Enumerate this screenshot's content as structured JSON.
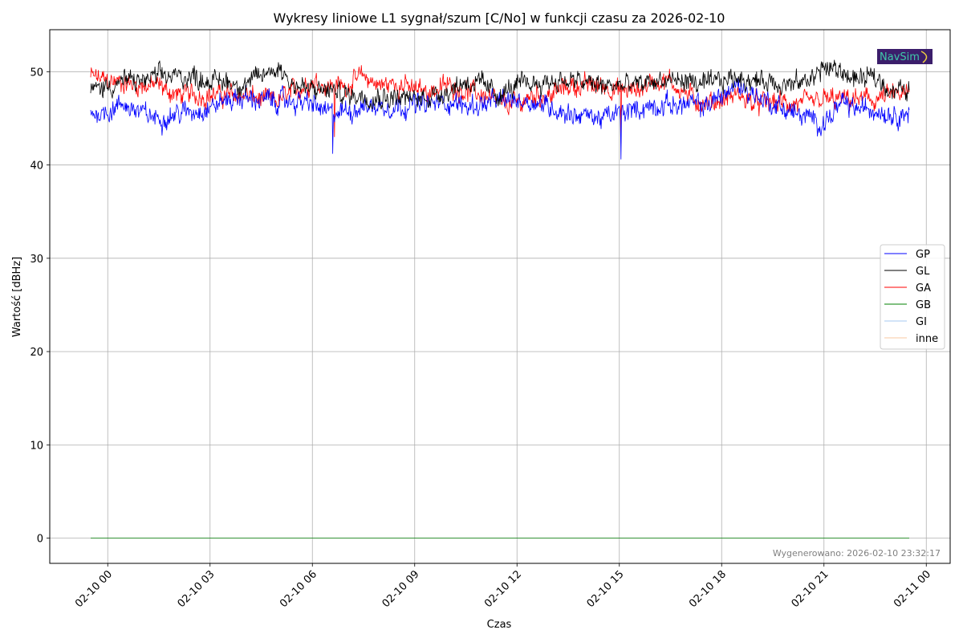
{
  "chart_data": {
    "type": "line",
    "title": "Wykresy liniowe L1 sygnał/szum [C/No] w funkcji czasu za 2026-02-10",
    "xlabel": "Czas",
    "ylabel": "Wartość [dBHz]",
    "x_start_hour": -0.5,
    "x_end_hour": 23.5,
    "xlim_hours": [
      -1.7,
      24.7
    ],
    "ylim": [
      -2.7,
      54.5
    ],
    "x_ticks": [
      {
        "hour": 0,
        "label": "02-10 00"
      },
      {
        "hour": 3,
        "label": "02-10 03"
      },
      {
        "hour": 6,
        "label": "02-10 06"
      },
      {
        "hour": 9,
        "label": "02-10 09"
      },
      {
        "hour": 12,
        "label": "02-10 12"
      },
      {
        "hour": 15,
        "label": "02-10 15"
      },
      {
        "hour": 18,
        "label": "02-10 18"
      },
      {
        "hour": 21,
        "label": "02-10 21"
      },
      {
        "hour": 24,
        "label": "02-11 00"
      }
    ],
    "y_ticks": [
      0,
      10,
      20,
      30,
      40,
      50
    ],
    "grid": true,
    "legend_position": "center-right",
    "series": [
      {
        "name": "GP",
        "color": "#0000ff",
        "points": [
          [
            -0.5,
            45.5
          ],
          [
            0,
            45.8
          ],
          [
            0.5,
            46.5
          ],
          [
            1,
            45.5
          ],
          [
            1.5,
            45
          ],
          [
            2,
            45.5
          ],
          [
            2.5,
            45.8
          ],
          [
            3,
            46.2
          ],
          [
            3.5,
            47
          ],
          [
            4,
            47.2
          ],
          [
            4.5,
            47
          ],
          [
            5,
            46.8
          ],
          [
            5.5,
            46.8
          ],
          [
            6,
            46.5
          ],
          [
            6.5,
            45.5
          ],
          [
            7,
            45.8
          ],
          [
            7.5,
            46.3
          ],
          [
            8,
            46.3
          ],
          [
            8.5,
            46.3
          ],
          [
            9,
            46.5
          ],
          [
            9.5,
            46.5
          ],
          [
            10,
            46.8
          ],
          [
            10.5,
            46.3
          ],
          [
            11,
            46.5
          ],
          [
            11.5,
            46.8
          ],
          [
            12,
            47
          ],
          [
            12.5,
            46.8
          ],
          [
            13,
            46.2
          ],
          [
            13.5,
            45.5
          ],
          [
            14,
            45.3
          ],
          [
            14.5,
            45
          ],
          [
            15,
            45.5
          ],
          [
            15.5,
            46
          ],
          [
            16,
            46.3
          ],
          [
            16.5,
            46.5
          ],
          [
            17,
            46.5
          ],
          [
            17.5,
            46.3
          ],
          [
            18,
            47.5
          ],
          [
            18.5,
            48.5
          ],
          [
            19,
            47.5
          ],
          [
            19.5,
            46.5
          ],
          [
            20,
            45.8
          ],
          [
            20.5,
            45
          ],
          [
            21,
            44.5
          ],
          [
            21.5,
            46.5
          ],
          [
            22,
            46
          ],
          [
            22.5,
            46
          ],
          [
            23,
            45.5
          ],
          [
            23.5,
            45.5
          ]
        ],
        "dips": [
          [
            6.6,
            41.2
          ],
          [
            15.05,
            40.6
          ]
        ]
      },
      {
        "name": "GL",
        "color": "#000000",
        "points": [
          [
            -0.5,
            48
          ],
          [
            0,
            48.5
          ],
          [
            0.5,
            49
          ],
          [
            1,
            49
          ],
          [
            1.5,
            49.5
          ],
          [
            2,
            49.5
          ],
          [
            2.5,
            49.5
          ],
          [
            3,
            49
          ],
          [
            3.5,
            49
          ],
          [
            4,
            48.5
          ],
          [
            4.5,
            49.5
          ],
          [
            5,
            50.5
          ],
          [
            5.5,
            48.5
          ],
          [
            6,
            48
          ],
          [
            6.5,
            48
          ],
          [
            7,
            47.5
          ],
          [
            7.5,
            47.5
          ],
          [
            8,
            47.3
          ],
          [
            8.5,
            47.3
          ],
          [
            9,
            47
          ],
          [
            9.5,
            47.5
          ],
          [
            10,
            48
          ],
          [
            10.5,
            49
          ],
          [
            11,
            48.5
          ],
          [
            11.5,
            47.5
          ],
          [
            12,
            48.5
          ],
          [
            12.5,
            48.8
          ],
          [
            13,
            49
          ],
          [
            13.5,
            49
          ],
          [
            14,
            48.8
          ],
          [
            14.5,
            48.5
          ],
          [
            15,
            48.5
          ],
          [
            15.5,
            48.5
          ],
          [
            16,
            49
          ],
          [
            16.5,
            49
          ],
          [
            17,
            49
          ],
          [
            17.5,
            48.5
          ],
          [
            18,
            49
          ],
          [
            18.5,
            49.5
          ],
          [
            19,
            49
          ],
          [
            19.5,
            49
          ],
          [
            20,
            48.5
          ],
          [
            20.5,
            49
          ],
          [
            21,
            50.5
          ],
          [
            21.5,
            50
          ],
          [
            22,
            49
          ],
          [
            22.5,
            49.5
          ],
          [
            23,
            48
          ],
          [
            23.5,
            48
          ]
        ],
        "dips": []
      },
      {
        "name": "GA",
        "color": "#ff0000",
        "points": [
          [
            -0.5,
            49.5
          ],
          [
            0,
            49
          ],
          [
            0.5,
            48.8
          ],
          [
            1,
            48.5
          ],
          [
            1.5,
            48.5
          ],
          [
            2,
            47.5
          ],
          [
            2.5,
            47.5
          ],
          [
            3,
            47.5
          ],
          [
            3.5,
            47.5
          ],
          [
            4,
            47.5
          ],
          [
            4.5,
            47
          ],
          [
            5,
            46.8
          ],
          [
            5.5,
            48
          ],
          [
            6,
            49
          ],
          [
            6.5,
            48.5
          ],
          [
            7,
            48.5
          ],
          [
            7.5,
            49.5
          ],
          [
            8,
            48.5
          ],
          [
            8.5,
            48.8
          ],
          [
            9,
            48
          ],
          [
            9.5,
            48
          ],
          [
            10,
            48.5
          ],
          [
            10.5,
            48
          ],
          [
            11,
            47.5
          ],
          [
            11.5,
            46.5
          ],
          [
            12,
            46.5
          ],
          [
            12.5,
            47.5
          ],
          [
            13,
            47.5
          ],
          [
            13.5,
            48.5
          ],
          [
            14,
            48.5
          ],
          [
            14.5,
            48.5
          ],
          [
            15,
            48
          ],
          [
            15.5,
            48
          ],
          [
            16,
            49
          ],
          [
            16.5,
            49
          ],
          [
            17,
            47.5
          ],
          [
            17.5,
            46.5
          ],
          [
            18,
            47
          ],
          [
            18.5,
            47.5
          ],
          [
            19,
            46.5
          ],
          [
            19.5,
            46.8
          ],
          [
            20,
            46.5
          ],
          [
            20.5,
            46.5
          ],
          [
            21,
            47
          ],
          [
            21.5,
            47
          ],
          [
            22,
            47
          ],
          [
            22.5,
            47
          ],
          [
            23,
            47.5
          ],
          [
            23.5,
            47.5
          ]
        ],
        "dips": [
          [
            6.65,
            43.0
          ],
          [
            15.05,
            42.3
          ]
        ]
      },
      {
        "name": "GB",
        "color": "#008000",
        "points": [
          [
            -0.5,
            0
          ],
          [
            23.5,
            0
          ]
        ],
        "dips": []
      },
      {
        "name": "GI",
        "color": "#a6c8f0",
        "points": [
          [
            -0.5,
            0
          ],
          [
            23.5,
            0
          ]
        ],
        "dips": []
      },
      {
        "name": "inne",
        "color": "#f8c8a0",
        "points": [
          [
            -0.5,
            0
          ],
          [
            23.5,
            0
          ]
        ],
        "dips": []
      }
    ]
  },
  "footer": {
    "generated_label": "Wygenerowano: 2026-02-10 23:32:17"
  },
  "logo": {
    "text": "NavSim",
    "bg_color": "#3b1e6b"
  }
}
